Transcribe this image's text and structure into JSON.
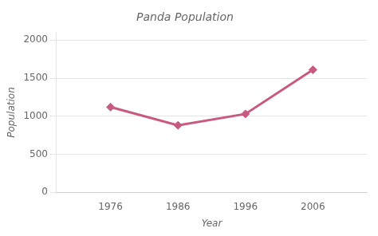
{
  "chart_data": {
    "type": "line",
    "title": "Panda Population",
    "xlabel": "Year",
    "ylabel": "Population",
    "x": [
      1976,
      1986,
      1996,
      2006
    ],
    "values": [
      1120,
      880,
      1030,
      1610
    ],
    "color": "#c85a82",
    "marker": "diamond",
    "xlim": [
      1968,
      2014
    ],
    "xticks": [
      1976,
      1986,
      1996,
      2006
    ],
    "ylim": [
      0,
      2100
    ],
    "yticks": [
      0,
      500,
      1000,
      1500,
      2000
    ],
    "grid": "y"
  }
}
